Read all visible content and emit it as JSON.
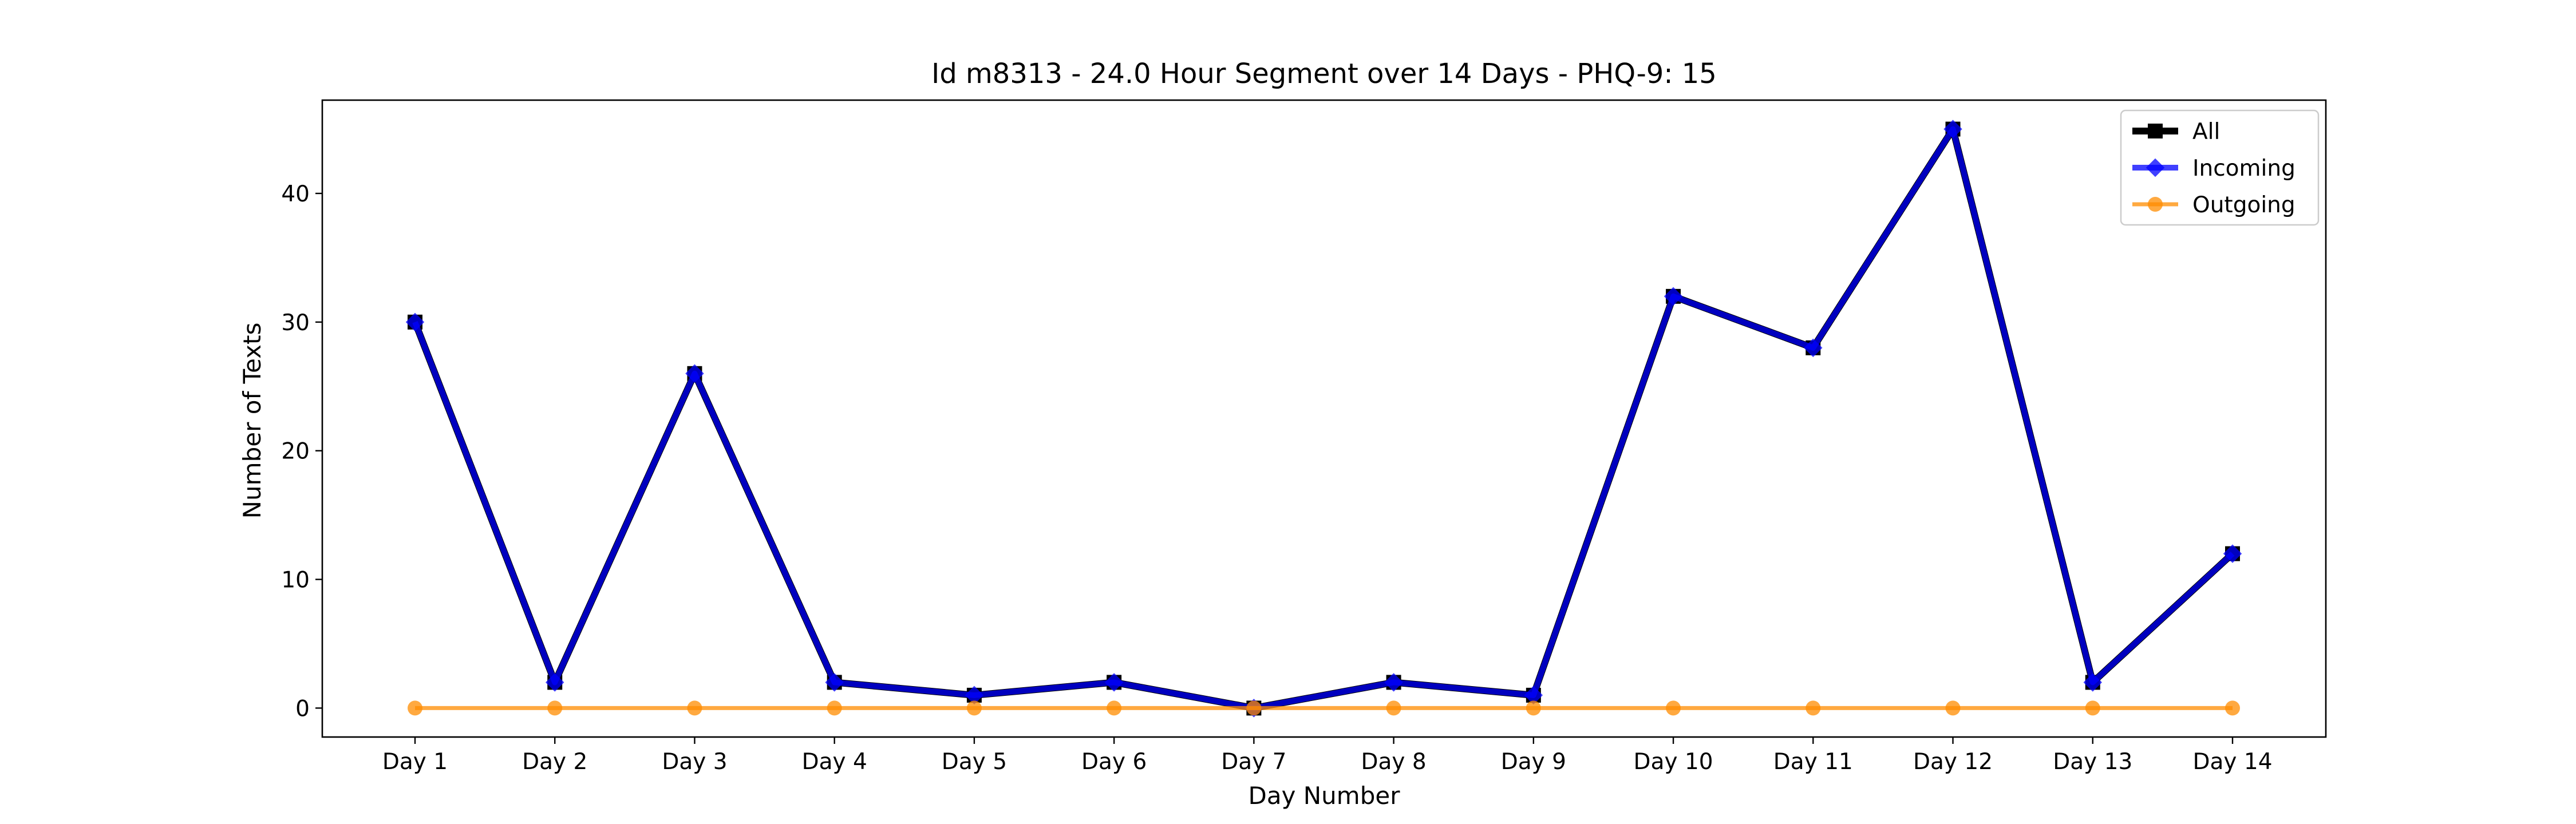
{
  "chart_data": {
    "type": "line",
    "title": "Id m8313 - 24.0 Hour Segment over 14 Days - PHQ-9: 15",
    "xlabel": "Day Number",
    "ylabel": "Number of Texts",
    "categories": [
      "Day 1",
      "Day 2",
      "Day 3",
      "Day 4",
      "Day 5",
      "Day 6",
      "Day 7",
      "Day 8",
      "Day 9",
      "Day 10",
      "Day 11",
      "Day 12",
      "Day 13",
      "Day 14"
    ],
    "ylim": [
      -2.25,
      47.25
    ],
    "yticks": [
      0,
      10,
      20,
      30,
      40
    ],
    "grid": false,
    "legend_position": "top-right",
    "series": [
      {
        "name": "All",
        "color": "#000000",
        "marker": "square",
        "values": [
          30,
          2,
          26,
          2,
          1,
          2,
          0,
          2,
          1,
          32,
          28,
          45,
          2,
          12
        ]
      },
      {
        "name": "Incoming",
        "color": "#0000ff",
        "marker": "diamond",
        "values": [
          30,
          2,
          26,
          2,
          1,
          2,
          0,
          2,
          1,
          32,
          28,
          45,
          2,
          12
        ]
      },
      {
        "name": "Outgoing",
        "color": "#ff8c00",
        "marker": "circle",
        "values": [
          0,
          0,
          0,
          0,
          0,
          0,
          0,
          0,
          0,
          0,
          0,
          0,
          0,
          0
        ]
      }
    ]
  }
}
